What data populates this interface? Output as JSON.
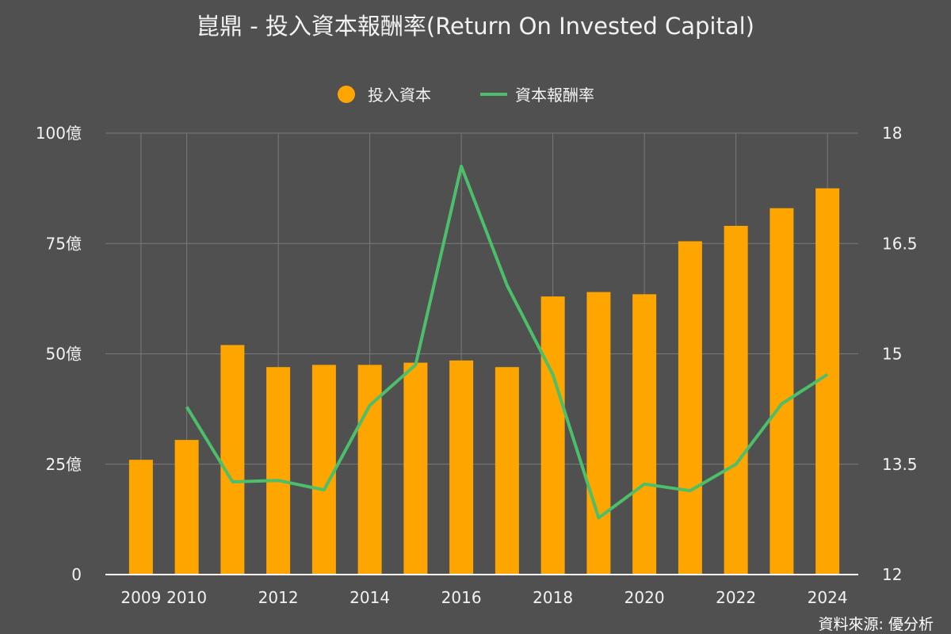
{
  "chart_data": {
    "type": "bar",
    "title": "崑鼎 - 投入資本報酬率(Return On Invested Capital)",
    "source_label": "資料來源: 優分析",
    "legend": [
      {
        "label": "投入資本",
        "shape": "circle",
        "color": "#ffa500"
      },
      {
        "label": "資本報酬率",
        "shape": "line",
        "color": "#4cbf6a"
      }
    ],
    "legend_position": "top-center",
    "grid": true,
    "x_tick_labels": [
      "2009",
      "2010",
      "",
      "2012",
      "",
      "2014",
      "",
      "2016",
      "",
      "2018",
      "",
      "2020",
      "",
      "2022",
      "",
      "2024"
    ],
    "categories": [
      "2009",
      "2010",
      "2011",
      "2012",
      "2013",
      "2014",
      "2015",
      "2016",
      "2017",
      "2018",
      "2019",
      "2020",
      "2021",
      "2022",
      "2023",
      "2024"
    ],
    "left_axis": {
      "ylim": [
        0,
        100
      ],
      "ticks": [
        {
          "value": 0,
          "label": "0"
        },
        {
          "value": 25,
          "label": "25億"
        },
        {
          "value": 50,
          "label": "50億"
        },
        {
          "value": 75,
          "label": "75億"
        },
        {
          "value": 100,
          "label": "100億"
        }
      ]
    },
    "right_axis": {
      "ylim": [
        12,
        18
      ],
      "ticks": [
        {
          "value": 12,
          "label": "12"
        },
        {
          "value": 13.5,
          "label": "13.5"
        },
        {
          "value": 15,
          "label": "15"
        },
        {
          "value": 16.5,
          "label": "16.5"
        },
        {
          "value": 18,
          "label": "18"
        }
      ]
    },
    "series": [
      {
        "name": "投入資本",
        "type": "bar",
        "axis": "left",
        "color": "#ffa500",
        "values": [
          26,
          30.5,
          52,
          47,
          47.5,
          47.5,
          48,
          48.5,
          47,
          63,
          64,
          63.5,
          75.5,
          79,
          83,
          87.5
        ]
      },
      {
        "name": "資本報酬率",
        "type": "line",
        "axis": "right",
        "color": "#4cbf6a",
        "values": [
          null,
          14.28,
          13.26,
          13.28,
          13.15,
          14.3,
          14.85,
          17.55,
          15.93,
          14.72,
          12.77,
          13.23,
          13.14,
          13.5,
          14.32,
          14.72
        ]
      }
    ]
  }
}
